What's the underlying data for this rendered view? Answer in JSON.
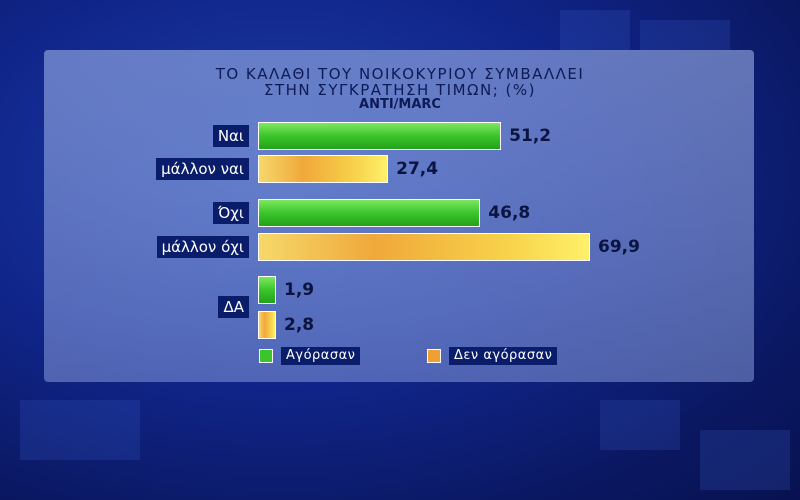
{
  "chart_data": {
    "type": "bar",
    "orientation": "horizontal",
    "title_line1": "ΤΟ ΚΑΛΑΘΙ ΤΟΥ ΝΟΙΚΟΚΥΡΙΟΥ ΣΥΜΒΑΛΛΕΙ",
    "title_line2": "ΣΤΗΝ ΣΥΓΚΡΑΤΗΣΗ ΤΙΜΩΝ; (%)",
    "source": "ANTI/MARC",
    "rows": [
      {
        "label": "Ναι",
        "value": 51.2,
        "value_label": "51,2",
        "series": "Αγόρασαν"
      },
      {
        "label": "μάλλον ναι",
        "value": 27.4,
        "value_label": "27,4",
        "series": "Δεν αγόρασαν"
      },
      {
        "label": "Όχι",
        "value": 46.8,
        "value_label": "46,8",
        "series": "Αγόρασαν"
      },
      {
        "label": "μάλλον όχι",
        "value": 69.9,
        "value_label": "69,9",
        "series": "Δεν αγόρασαν"
      },
      {
        "label": "ΔΑ",
        "value": 1.9,
        "value_label": "1,9",
        "series": "Αγόρασαν"
      },
      {
        "label": "",
        "value": 2.8,
        "value_label": "2,8",
        "series": "Δεν αγόρασαν"
      }
    ],
    "legend": [
      {
        "name": "Αγόρασαν",
        "color": "#3cc42c"
      },
      {
        "name": "Δεν αγόρασαν",
        "color": "#f0a030"
      }
    ],
    "legend_position": "bottom"
  }
}
